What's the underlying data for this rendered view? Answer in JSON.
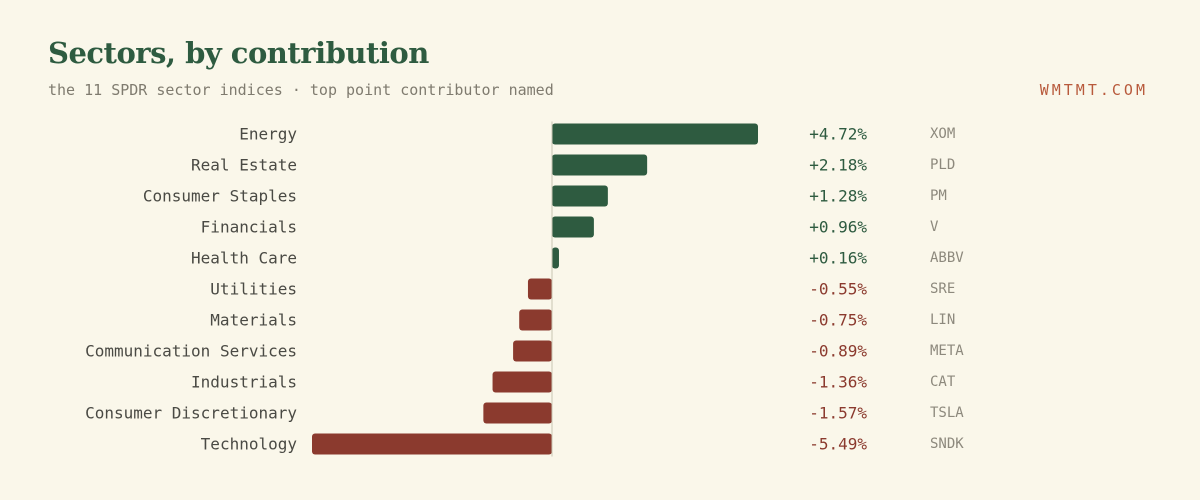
{
  "header": {
    "title": "Sectors, by contribution",
    "subtitle": "the 11 SPDR sector indices · top point contributor named",
    "brand": "WMTMT.COM"
  },
  "colors": {
    "positive": "#2e5b40",
    "negative": "#8b3a2e",
    "background": "#faf7ea",
    "zero_line": "#c8c4b3"
  },
  "chart_data": {
    "type": "bar",
    "orientation": "horizontal",
    "title": "Sectors, by contribution",
    "subtitle": "the 11 SPDR sector indices · top point contributor named",
    "categories": [
      "Energy",
      "Real Estate",
      "Consumer Staples",
      "Financials",
      "Health Care",
      "Utilities",
      "Materials",
      "Communication Services",
      "Industrials",
      "Consumer Discretionary",
      "Technology"
    ],
    "values": [
      4.72,
      2.18,
      1.28,
      0.96,
      0.16,
      -0.55,
      -0.75,
      -0.89,
      -1.36,
      -1.57,
      -5.49
    ],
    "value_labels": [
      "+4.72%",
      "+2.18%",
      "+1.28%",
      "+0.96%",
      "+0.16%",
      "-0.55%",
      "-0.75%",
      "-0.89%",
      "-1.36%",
      "-1.57%",
      "-5.49%"
    ],
    "top_contributors": [
      "XOM",
      "PLD",
      "PM",
      "V",
      "ABBV",
      "SRE",
      "LIN",
      "META",
      "CAT",
      "TSLA",
      "SNDK"
    ],
    "xlim": [
      -5.49,
      4.72
    ],
    "unit": "%",
    "grid": false,
    "legend": "none"
  }
}
